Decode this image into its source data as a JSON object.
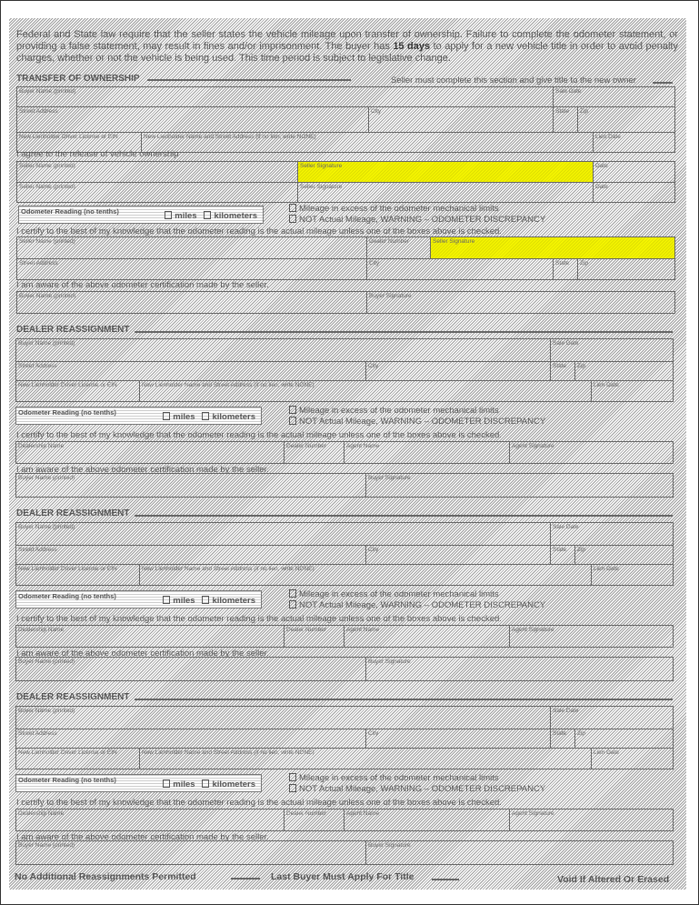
{
  "intro": {
    "part1": "Federal and State law require that the seller states the vehicle mileage upon transfer of ownership. Failure to complete the odometer statement, or providing a false statement, may result in fines and/or imprisonment. The buyer has ",
    "bold": "15 days",
    "part2": " to apply for a new vehicle title in order to avoid penalty charges, whether or not the vehicle is being used. This time period is subject to legislative change."
  },
  "transfer": {
    "title": "TRANSFER OF OWNERSHIP",
    "note": "Seller must complete this section and give title to the new owner",
    "agree_text": "I agree to the release of vehicle ownership",
    "certify_text": "I certify to the best of my knowledge that the odometer reading is the actual mileage unless one of the boxes above is checked.",
    "aware_text": "I am aware of the above odometer certification made by the seller."
  },
  "labels": {
    "buyer_name": "Buyer Name (printed)",
    "sale_date": "Sale Date",
    "street": "Street Address",
    "city": "City",
    "state": "State",
    "zip": "Zip",
    "lien_dl": "New Lienholder Driver License or EIN",
    "lien_name": "New Lienholder Name and Street Address (if no lien, write NONE)",
    "lien_date": "Lien Date",
    "seller_name": "Seller Name (printed)",
    "seller_sig": "Seller Signature",
    "date": "Date",
    "dealer_number": "Dealer Number",
    "buyer_sig": "Buyer Signature",
    "dealership_name": "Dealership Name",
    "agent_name": "Agent Name",
    "agent_sig": "Agent Signature"
  },
  "odometer": {
    "label": "Odometer Reading (no tenths)",
    "miles": "miles",
    "kilometers": "kilometers",
    "check_excess": "Mileage in excess of the odometer mechanical limits",
    "check_not_actual": "NOT Actual Mileage, WARNING – ODOMETER DISCREPANCY"
  },
  "dealer_sections": [
    {
      "title": "DEALER REASSIGNMENT"
    },
    {
      "title": "DEALER REASSIGNMENT"
    },
    {
      "title": "DEALER REASSIGNMENT"
    }
  ],
  "footer": {
    "left": "No Additional Reassignments Permitted",
    "middle": "Last Buyer Must Apply For Title",
    "right": "Void If Altered Or Erased"
  },
  "colors": {
    "highlight": "#f5f500",
    "ink": "#555555"
  }
}
